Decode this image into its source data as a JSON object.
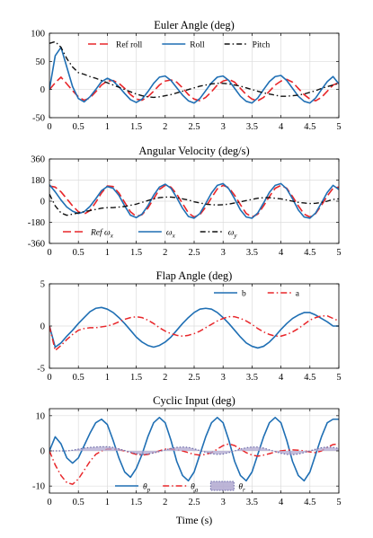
{
  "chart_data": [
    {
      "type": "line",
      "title": "Euler Angle (deg)",
      "xlabel": "",
      "ylabel": "",
      "xlim": [
        0,
        5
      ],
      "ylim": [
        -50,
        100
      ],
      "x_ticks": [
        "0",
        "0.5",
        "1",
        "1.5",
        "2",
        "2.5",
        "3",
        "3.5",
        "4",
        "4.5",
        "5"
      ],
      "y_ticks": [
        {
          "v": -50,
          "label": "-50"
        },
        {
          "v": 0,
          "label": "0"
        },
        {
          "v": 50,
          "label": "50"
        },
        {
          "v": 100,
          "label": "100"
        }
      ],
      "grid": true,
      "legend_position": "top",
      "x": [
        0,
        0.1,
        0.2,
        0.3,
        0.4,
        0.5,
        0.6,
        0.7,
        0.8,
        0.9,
        1,
        1.1,
        1.2,
        1.3,
        1.4,
        1.5,
        1.6,
        1.7,
        1.8,
        1.9,
        2,
        2.1,
        2.2,
        2.3,
        2.4,
        2.5,
        2.6,
        2.7,
        2.8,
        2.9,
        3,
        3.1,
        3.2,
        3.3,
        3.4,
        3.5,
        3.6,
        3.7,
        3.8,
        3.9,
        4,
        4.1,
        4.2,
        4.3,
        4.4,
        4.5,
        4.6,
        4.7,
        4.8,
        4.9,
        5
      ],
      "series": [
        {
          "name": "Ref roll",
          "color": "#e8262a",
          "dash": "9,4",
          "width": 1.6,
          "values": [
            0,
            12,
            22,
            10,
            -2,
            -13,
            -19,
            -15,
            -4,
            8,
            15,
            16,
            11,
            2,
            -9,
            -17,
            -19,
            -13,
            -3,
            8,
            15,
            17,
            13,
            3,
            -9,
            -17,
            -20,
            -14,
            -4,
            8,
            15,
            18,
            13,
            2,
            -9,
            -17,
            -20,
            -14,
            -3,
            8,
            15,
            18,
            13,
            2,
            -9,
            -17,
            -20,
            -14,
            -3,
            8,
            12
          ]
        },
        {
          "name": "Roll",
          "color": "#1f6fb4",
          "dash": "",
          "width": 1.6,
          "values": [
            0,
            60,
            75,
            40,
            5,
            -16,
            -22,
            -13,
            0,
            14,
            20,
            15,
            5,
            -7,
            -18,
            -23,
            -17,
            -4,
            11,
            22,
            24,
            16,
            3,
            -10,
            -20,
            -24,
            -16,
            -2,
            12,
            22,
            24,
            16,
            2,
            -12,
            -21,
            -24,
            -15,
            0,
            14,
            23,
            25,
            16,
            2,
            -12,
            -21,
            -24,
            -15,
            0,
            14,
            23,
            10
          ]
        },
        {
          "name": "Pitch",
          "color": "#111111",
          "dash": "6,3,1.5,3",
          "width": 1.4,
          "values": [
            82,
            85,
            75,
            55,
            40,
            30,
            27,
            23,
            20,
            16,
            12,
            8,
            4,
            0,
            -4,
            -8,
            -11,
            -13,
            -14,
            -13,
            -11,
            -9,
            -6,
            -3,
            0,
            3,
            6,
            8,
            10,
            11,
            11,
            10,
            8,
            6,
            3,
            0,
            -3,
            -6,
            -8,
            -10,
            -12,
            -12,
            -11,
            -10,
            -8,
            -5,
            -2,
            2,
            5,
            8,
            11
          ]
        }
      ]
    },
    {
      "type": "line",
      "title": "Angular Velocity (deg/s)",
      "xlabel": "",
      "ylabel": "",
      "xlim": [
        0,
        5
      ],
      "ylim": [
        -360,
        360
      ],
      "x_ticks": [
        "0",
        "0.5",
        "1",
        "1.5",
        "2",
        "2.5",
        "3",
        "3.5",
        "4",
        "4.5",
        "5"
      ],
      "y_ticks": [
        {
          "v": -360,
          "label": "-360"
        },
        {
          "v": -180,
          "label": "-180"
        },
        {
          "v": 0,
          "label": "0"
        },
        {
          "v": 180,
          "label": "180"
        },
        {
          "v": 360,
          "label": "360"
        }
      ],
      "grid": true,
      "legend_position": "bottom",
      "x": [
        0,
        0.1,
        0.2,
        0.3,
        0.4,
        0.5,
        0.6,
        0.7,
        0.8,
        0.9,
        1,
        1.1,
        1.2,
        1.3,
        1.4,
        1.5,
        1.6,
        1.7,
        1.8,
        1.9,
        2,
        2.1,
        2.2,
        2.3,
        2.4,
        2.5,
        2.6,
        2.7,
        2.8,
        2.9,
        3,
        3.1,
        3.2,
        3.3,
        3.4,
        3.5,
        3.6,
        3.7,
        3.8,
        3.9,
        4,
        4.1,
        4.2,
        4.3,
        4.4,
        4.5,
        4.6,
        4.7,
        4.8,
        4.9,
        5
      ],
      "series": [
        {
          "name": "Ref ω_x",
          "label_main": "Ref ω",
          "label_sub": "x",
          "color": "#e8262a",
          "dash": "9,4",
          "width": 1.6,
          "values": [
            130,
            120,
            80,
            20,
            -40,
            -90,
            -110,
            -80,
            -10,
            70,
            130,
            125,
            70,
            -10,
            -90,
            -130,
            -115,
            -60,
            20,
            100,
            135,
            120,
            60,
            -20,
            -100,
            -135,
            -115,
            -50,
            30,
            105,
            135,
            115,
            50,
            -30,
            -105,
            -135,
            -110,
            -40,
            40,
            110,
            135,
            110,
            40,
            -40,
            -110,
            -135,
            -105,
            -35,
            45,
            110,
            120
          ]
        },
        {
          "name": "ω_x",
          "label_main": "ω",
          "label_sub": "x",
          "color": "#1f6fb4",
          "dash": "",
          "width": 1.6,
          "values": [
            140,
            80,
            10,
            -50,
            -85,
            -105,
            -90,
            -45,
            20,
            90,
            125,
            110,
            50,
            -40,
            -120,
            -140,
            -110,
            -40,
            50,
            120,
            145,
            110,
            30,
            -60,
            -130,
            -145,
            -105,
            -20,
            70,
            135,
            150,
            105,
            20,
            -75,
            -135,
            -145,
            -100,
            -15,
            75,
            135,
            150,
            105,
            20,
            -75,
            -135,
            -145,
            -100,
            -15,
            75,
            135,
            100
          ]
        },
        {
          "name": "ω_y",
          "label_main": "ω",
          "label_sub": "y",
          "color": "#111111",
          "dash": "6,3,1.5,3",
          "width": 1.4,
          "values": [
            60,
            -40,
            -100,
            -120,
            -110,
            -100,
            -90,
            -80,
            -70,
            -60,
            -55,
            -55,
            -50,
            -45,
            -35,
            -25,
            -10,
            5,
            20,
            30,
            35,
            35,
            30,
            20,
            10,
            -5,
            -15,
            -25,
            -30,
            -32,
            -30,
            -25,
            -15,
            -5,
            5,
            15,
            25,
            30,
            30,
            25,
            20,
            10,
            0,
            -10,
            -15,
            -20,
            -18,
            -10,
            0,
            15,
            20
          ]
        }
      ]
    },
    {
      "type": "line",
      "title": "Flap Angle (deg)",
      "xlabel": "",
      "ylabel": "",
      "xlim": [
        0,
        5
      ],
      "ylim": [
        -5,
        5
      ],
      "x_ticks": [
        "0",
        "0.5",
        "1",
        "1.5",
        "2",
        "2.5",
        "3",
        "3.5",
        "4",
        "4.5",
        "5"
      ],
      "y_ticks": [
        {
          "v": -5,
          "label": "-5"
        },
        {
          "v": 0,
          "label": "0"
        },
        {
          "v": 5,
          "label": "5"
        }
      ],
      "grid": true,
      "legend_position": "top-right",
      "x": [
        0,
        0.1,
        0.2,
        0.3,
        0.4,
        0.5,
        0.6,
        0.7,
        0.8,
        0.9,
        1,
        1.1,
        1.2,
        1.3,
        1.4,
        1.5,
        1.6,
        1.7,
        1.8,
        1.9,
        2,
        2.1,
        2.2,
        2.3,
        2.4,
        2.5,
        2.6,
        2.7,
        2.8,
        2.9,
        3,
        3.1,
        3.2,
        3.3,
        3.4,
        3.5,
        3.6,
        3.7,
        3.8,
        3.9,
        4,
        4.1,
        4.2,
        4.3,
        4.4,
        4.5,
        4.6,
        4.7,
        4.8,
        4.9,
        5
      ],
      "series": [
        {
          "name": "b",
          "color": "#1f6fb4",
          "dash": "",
          "width": 1.6,
          "values": [
            0,
            -2.5,
            -2.0,
            -1.2,
            -0.5,
            0.3,
            1.0,
            1.7,
            2.1,
            2.2,
            2.0,
            1.6,
            1.0,
            0.3,
            -0.5,
            -1.3,
            -1.9,
            -2.3,
            -2.5,
            -2.3,
            -1.9,
            -1.3,
            -0.5,
            0.3,
            1.0,
            1.6,
            2.0,
            2.1,
            2.0,
            1.6,
            1.0,
            0.3,
            -0.5,
            -1.3,
            -2.0,
            -2.4,
            -2.6,
            -2.4,
            -1.9,
            -1.2,
            -0.4,
            0.3,
            0.9,
            1.3,
            1.6,
            1.6,
            1.3,
            0.9,
            0.5,
            0.0,
            0.0
          ]
        },
        {
          "name": "a",
          "color": "#e8262a",
          "dash": "7,3,1.5,3",
          "width": 1.5,
          "values": [
            0,
            -2.9,
            -2.3,
            -1.6,
            -1.0,
            -0.5,
            -0.3,
            -0.2,
            -0.2,
            -0.1,
            0.0,
            0.2,
            0.5,
            0.8,
            1.0,
            1.1,
            1.0,
            0.7,
            0.3,
            -0.2,
            -0.6,
            -0.9,
            -1.1,
            -1.2,
            -1.1,
            -0.9,
            -0.6,
            -0.2,
            0.2,
            0.6,
            0.9,
            1.1,
            1.1,
            0.9,
            0.6,
            0.2,
            -0.3,
            -0.7,
            -1.0,
            -1.2,
            -1.2,
            -1.0,
            -0.7,
            -0.3,
            0.2,
            0.7,
            1.0,
            1.2,
            1.2,
            0.9,
            0.6
          ]
        }
      ]
    },
    {
      "type": "line",
      "title": "Cyclic Input (deg)",
      "xlabel": "Time (s)",
      "ylabel": "",
      "xlim": [
        0,
        5
      ],
      "ylim": [
        -12,
        12
      ],
      "x_ticks": [
        "0",
        "0.5",
        "1",
        "1.5",
        "2",
        "2.5",
        "3",
        "3.5",
        "4",
        "4.5",
        "5"
      ],
      "y_ticks": [
        {
          "v": -10,
          "label": "-10"
        },
        {
          "v": 0,
          "label": "0"
        },
        {
          "v": 10,
          "label": "10"
        }
      ],
      "grid": true,
      "legend_position": "bottom",
      "x": [
        0,
        0.1,
        0.2,
        0.3,
        0.4,
        0.5,
        0.6,
        0.7,
        0.8,
        0.9,
        1,
        1.1,
        1.2,
        1.3,
        1.4,
        1.5,
        1.6,
        1.7,
        1.8,
        1.9,
        2,
        2.1,
        2.2,
        2.3,
        2.4,
        2.5,
        2.6,
        2.7,
        2.8,
        2.9,
        3,
        3.1,
        3.2,
        3.3,
        3.4,
        3.5,
        3.6,
        3.7,
        3.8,
        3.9,
        4,
        4.1,
        4.2,
        4.3,
        4.4,
        4.5,
        4.6,
        4.7,
        4.8,
        4.9,
        5
      ],
      "series": [
        {
          "name": "θ_p",
          "label_main": "θ",
          "label_sub": "p",
          "color": "#1f6fb4",
          "dash": "",
          "width": 1.6,
          "fill": false,
          "values": [
            0,
            4,
            2,
            -2,
            -3.5,
            -2,
            1.5,
            5,
            8,
            9,
            7.5,
            3,
            -2,
            -6,
            -7.5,
            -5,
            -1,
            4,
            8,
            9.5,
            8,
            3,
            -3,
            -7,
            -8.5,
            -6,
            -1,
            4,
            8,
            9.5,
            8,
            3,
            -3,
            -7,
            -8.5,
            -6,
            -1,
            4,
            8,
            9.5,
            8,
            3,
            -3,
            -7,
            -8.5,
            -6,
            -1,
            4,
            8,
            9,
            9
          ]
        },
        {
          "name": "θ_a",
          "label_main": "θ",
          "label_sub": "a",
          "color": "#e8262a",
          "dash": "7,3,1.5,3",
          "width": 1.5,
          "fill": false,
          "values": [
            0,
            -4,
            -7,
            -9,
            -9.5,
            -8,
            -5.5,
            -3,
            -1,
            0,
            0.5,
            0.5,
            0.3,
            0,
            -0.5,
            -1,
            -1.2,
            -1,
            -0.5,
            0,
            0.5,
            0.5,
            0.3,
            0,
            -0.5,
            -1,
            -1.2,
            -1,
            -0.5,
            0.5,
            1.5,
            2,
            1.5,
            0.5,
            -0.5,
            -1.2,
            -1.5,
            -1.2,
            -0.8,
            -0.3,
            0,
            0.2,
            0.3,
            0.2,
            0,
            -0.3,
            -0.5,
            0,
            1,
            1.8,
            2
          ]
        },
        {
          "name": "θ_r",
          "label_main": "θ",
          "label_sub": "r",
          "color": "#6b6ba8",
          "dash": "1.5,2",
          "width": 1.2,
          "fill": true,
          "fill_color": "#b0a8d0",
          "values": [
            0,
            0,
            0,
            0,
            0.2,
            0.5,
            0.8,
            1.0,
            1.1,
            1.2,
            1.2,
            1.0,
            0.6,
            0.1,
            -0.4,
            -0.8,
            -1.0,
            -0.9,
            -0.6,
            -0.2,
            0.3,
            0.7,
            1.0,
            1.1,
            1.0,
            0.6,
            0.1,
            -0.4,
            -0.8,
            -1.0,
            -0.9,
            -0.5,
            0.0,
            0.5,
            0.9,
            1.1,
            1.1,
            0.8,
            0.3,
            -0.2,
            -0.7,
            -1.0,
            -1.1,
            -0.9,
            -0.5,
            0.0,
            0.5,
            0.9,
            1.1,
            1.0,
            0.7
          ]
        }
      ]
    }
  ]
}
